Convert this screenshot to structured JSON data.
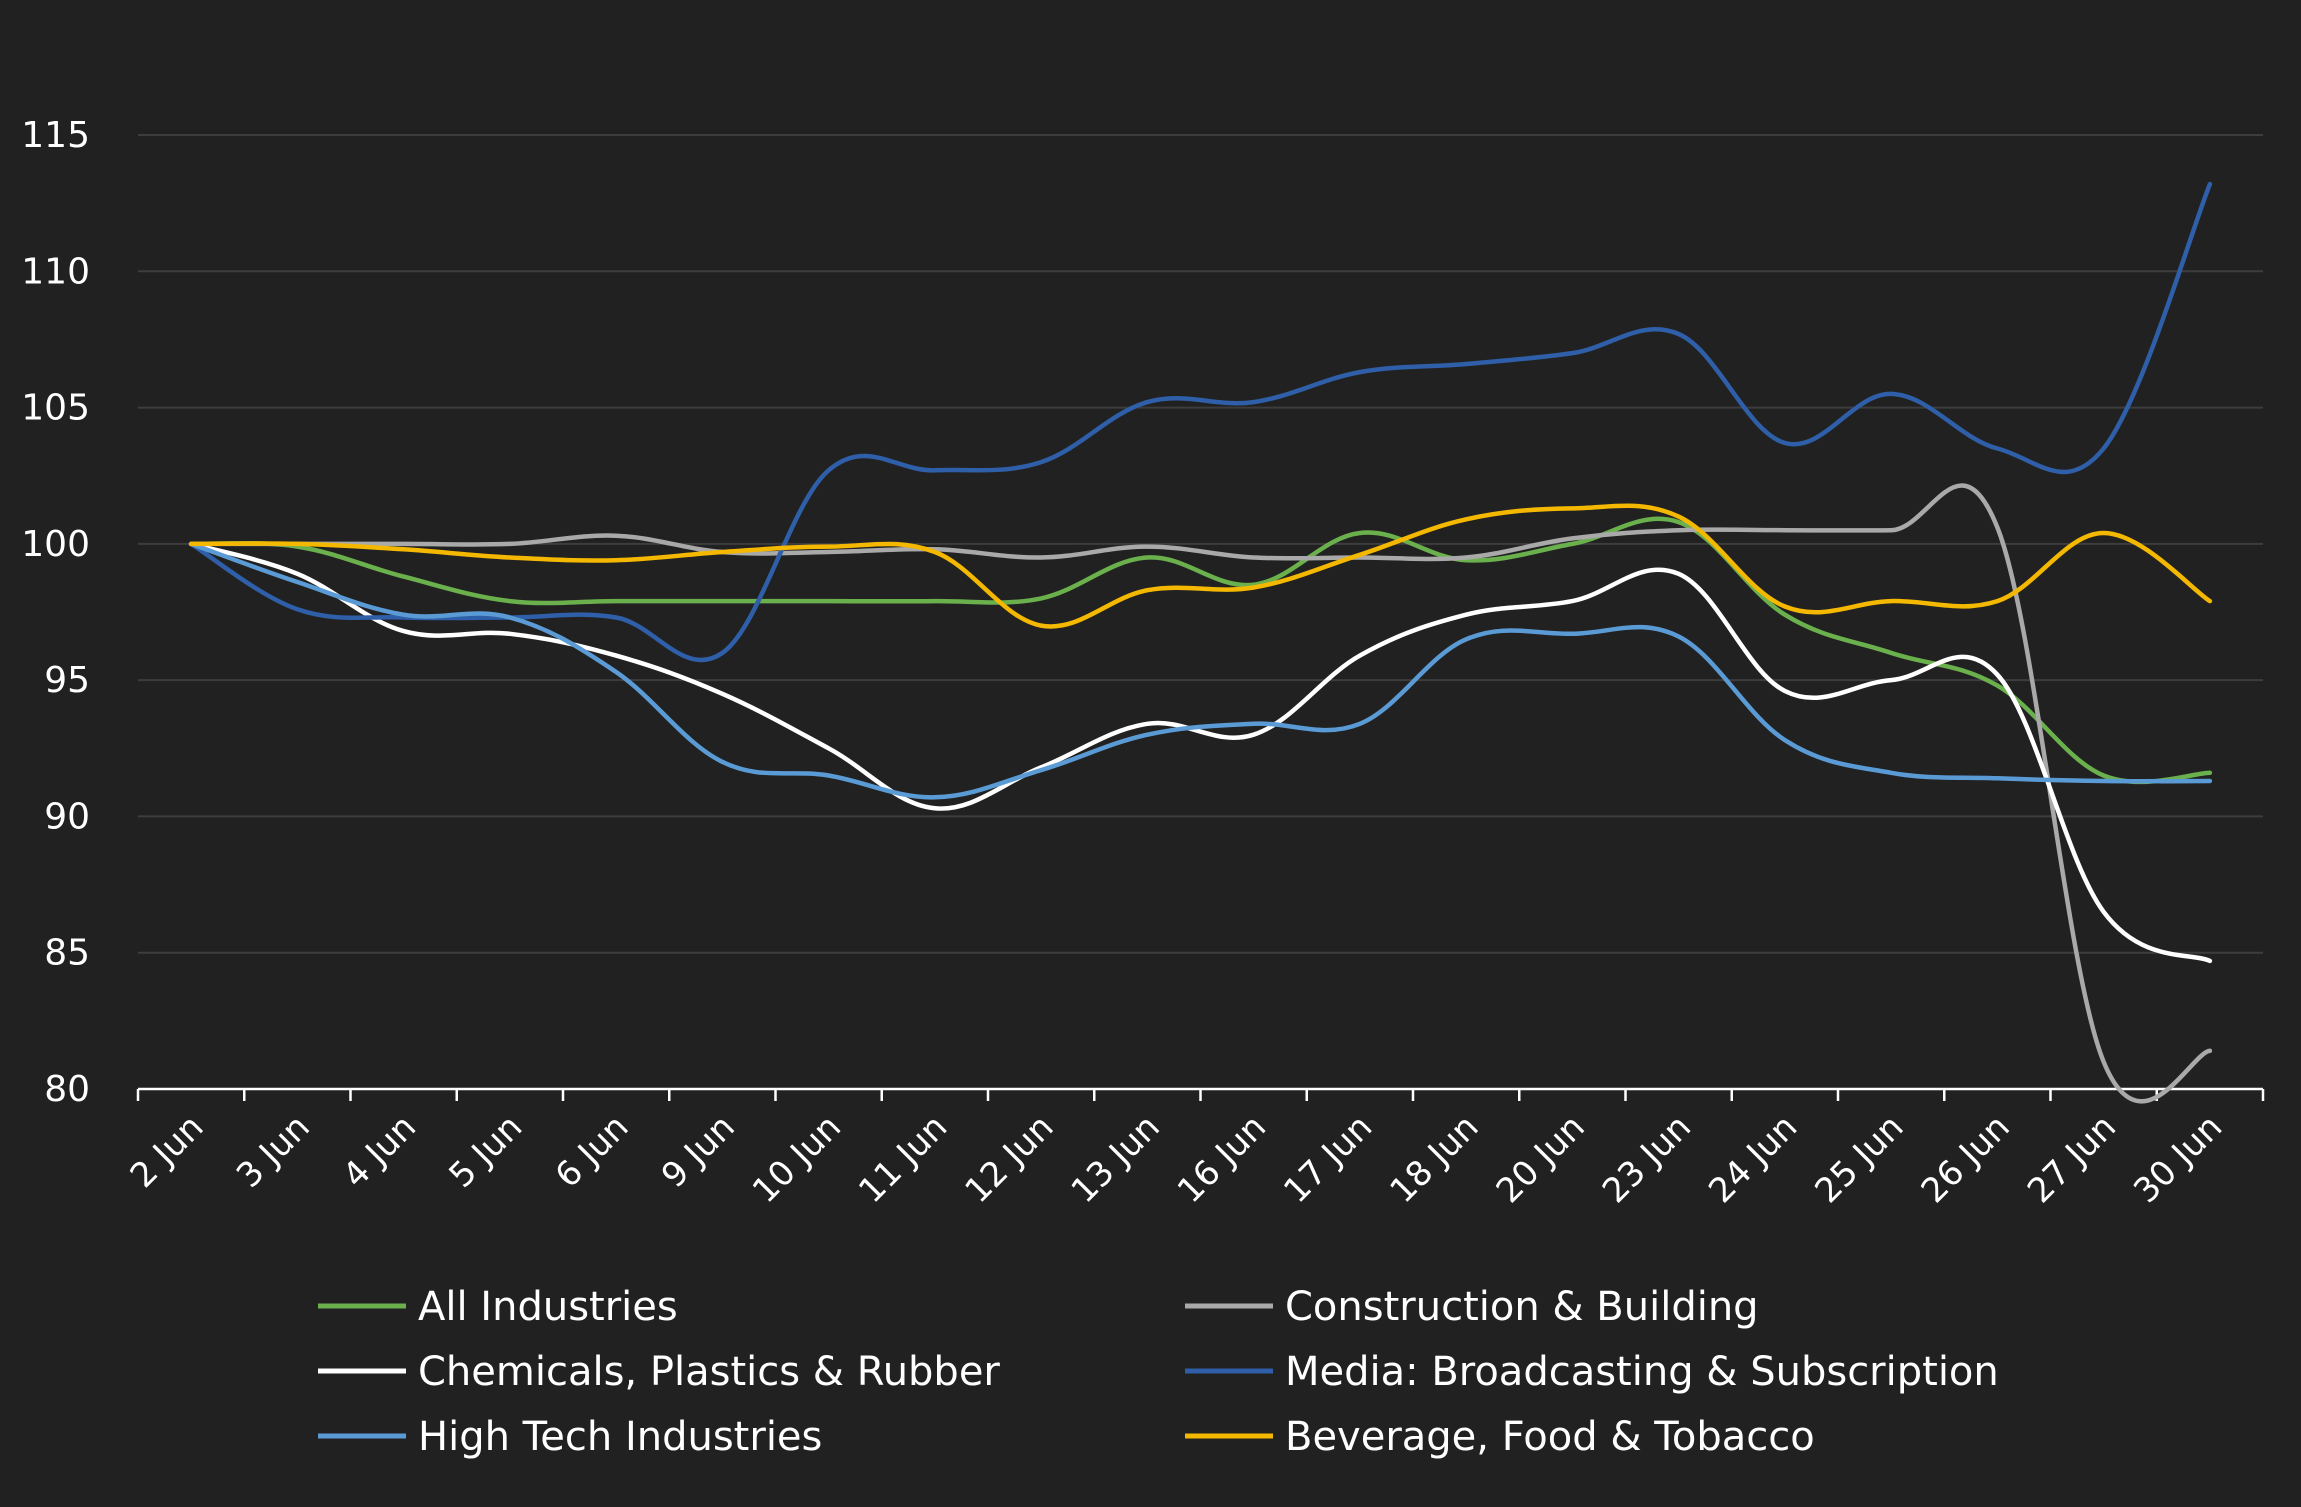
{
  "chart_data": {
    "type": "line",
    "title": "",
    "xlabel": "",
    "ylabel": "",
    "ylim": [
      80,
      115
    ],
    "yticks": [
      "115",
      "110",
      "105",
      "100",
      "95",
      "90",
      "85",
      "80"
    ],
    "grid": true,
    "legend_position": "bottom",
    "background": "#212121",
    "categories": [
      "2 Jun",
      "3 Jun",
      "4 Jun",
      "5 Jun",
      "6 Jun",
      "9 Jun",
      "10 Jun",
      "11 Jun",
      "12 Jun",
      "13 Jun",
      "16 Jun",
      "17 Jun",
      "18 Jun",
      "20 Jun",
      "23 Jun",
      "24 Jun",
      "25 Jun",
      "26 Jun",
      "27 Jun",
      "30 Jun"
    ],
    "series": [
      {
        "name": "All Industries",
        "color": "#6ab04c",
        "values": [
          100,
          99.9,
          98.8,
          97.9,
          97.9,
          97.9,
          97.9,
          97.9,
          98.0,
          99.5,
          98.5,
          100.4,
          99.4,
          100.0,
          100.8,
          97.4,
          96.0,
          94.8,
          91.5,
          91.6
        ]
      },
      {
        "name": "Construction & Building",
        "color": "#a9a9a9",
        "values": [
          100,
          100,
          100,
          100,
          100.3,
          99.7,
          99.7,
          99.8,
          99.5,
          99.9,
          99.5,
          99.5,
          99.5,
          100.2,
          100.5,
          100.5,
          100.5,
          100.6,
          81.0,
          81.4
        ]
      },
      {
        "name": "Chemicals, Plastics & Rubber",
        "color": "#ffffff",
        "values": [
          100,
          98.9,
          96.8,
          96.7,
          95.9,
          94.5,
          92.5,
          90.3,
          91.8,
          93.4,
          93.0,
          95.9,
          97.4,
          97.9,
          98.9,
          94.6,
          95.0,
          95.2,
          86.5,
          84.7
        ]
      },
      {
        "name": "Media: Broadcasting & Subscription",
        "color": "#2e5fa8",
        "values": [
          100,
          97.6,
          97.3,
          97.3,
          97.3,
          96.0,
          102.7,
          102.7,
          103.0,
          105.2,
          105.2,
          106.3,
          106.6,
          107.0,
          107.7,
          103.7,
          105.5,
          103.5,
          103.5,
          113.2
        ]
      },
      {
        "name": "High Tech Industries",
        "color": "#5b9bd5",
        "values": [
          100,
          98.6,
          97.4,
          97.3,
          95.3,
          92.0,
          91.5,
          90.7,
          91.7,
          93.0,
          93.4,
          93.4,
          96.5,
          96.7,
          96.6,
          92.8,
          91.6,
          91.4,
          91.3,
          91.3
        ]
      },
      {
        "name": "Beverage, Food & Tobacco",
        "color": "#f5b800",
        "values": [
          100,
          100,
          99.8,
          99.5,
          99.4,
          99.7,
          99.9,
          99.7,
          97.0,
          98.3,
          98.4,
          99.6,
          100.9,
          101.3,
          101.0,
          97.7,
          97.9,
          97.9,
          100.4,
          97.9
        ]
      }
    ]
  }
}
